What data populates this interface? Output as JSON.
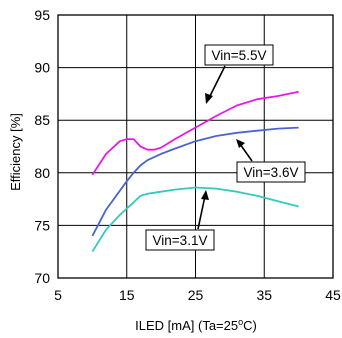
{
  "chart_data": {
    "type": "line",
    "title": "",
    "xlabel": "ILED [mA] (Ta=25",
    "xlabel_superscript": "o",
    "xlabel_suffix": "C)",
    "ylabel": "Efficiency [%]",
    "xlim": [
      5,
      45
    ],
    "ylim": [
      70,
      95
    ],
    "xticks": [
      "5",
      "15",
      "25",
      "35",
      "45"
    ],
    "yticks": [
      "70",
      "75",
      "80",
      "85",
      "90",
      "95"
    ],
    "grid": true,
    "legend": "annotations",
    "series": [
      {
        "name": "Vin=5.5V",
        "color": "#e619e6",
        "x": [
          10,
          12,
          14,
          15,
          16,
          17,
          18,
          19,
          20,
          22,
          25,
          28,
          31,
          34,
          37,
          40
        ],
        "y": [
          79.8,
          81.8,
          83.0,
          83.2,
          83.2,
          82.5,
          82.2,
          82.2,
          82.4,
          83.2,
          84.3,
          85.4,
          86.4,
          87.0,
          87.3,
          87.7
        ]
      },
      {
        "name": "Vin=3.6V",
        "color": "#4a64d0",
        "x": [
          10,
          12,
          14,
          15,
          16,
          17,
          18,
          20,
          22,
          25,
          28,
          31,
          34,
          37,
          40
        ],
        "y": [
          74.0,
          76.5,
          78.3,
          79.2,
          80.0,
          80.7,
          81.2,
          81.8,
          82.3,
          83.0,
          83.5,
          83.8,
          84.0,
          84.2,
          84.3
        ]
      },
      {
        "name": "Vin=3.1V",
        "color": "#35c9bd",
        "x": [
          10,
          12,
          14,
          16,
          17,
          18,
          20,
          22,
          25,
          28,
          31,
          34,
          37,
          40
        ],
        "y": [
          72.5,
          74.6,
          76.0,
          77.2,
          77.8,
          78.0,
          78.2,
          78.4,
          78.6,
          78.5,
          78.2,
          77.8,
          77.3,
          76.8
        ]
      }
    ],
    "annotations": [
      {
        "text": "Vin=5.5V"
      },
      {
        "text": "Vin=3.6V"
      },
      {
        "text": "Vin=3.1V"
      }
    ]
  }
}
